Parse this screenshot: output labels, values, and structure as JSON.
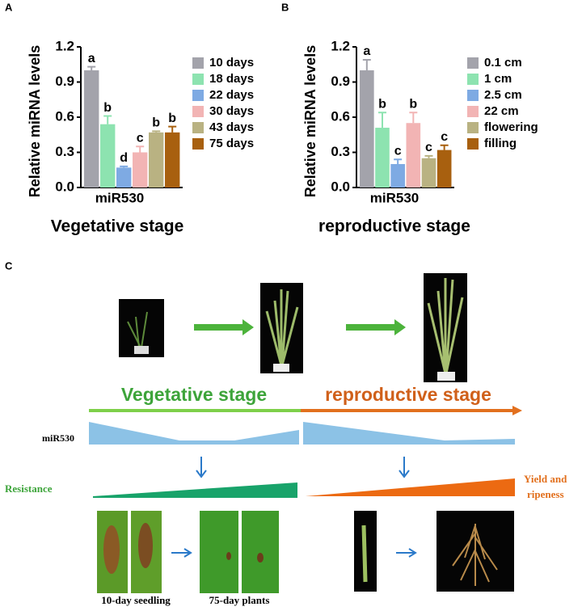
{
  "chart_data": [
    {
      "type": "bar",
      "panel": "A",
      "ylabel": "Relative miRNA levels",
      "xlabel": "miR530",
      "title": "Vegetative stage",
      "categories": [
        "10 days",
        "18 days",
        "22 days",
        "30 days",
        "43 days",
        "75 days"
      ],
      "values": [
        1.0,
        0.54,
        0.17,
        0.3,
        0.47,
        0.47
      ],
      "errors": [
        0.03,
        0.07,
        0.01,
        0.05,
        0.01,
        0.05
      ],
      "annotations": [
        "a",
        "b",
        "d",
        "c",
        "b",
        "b"
      ],
      "colors": [
        "#a3a3ab",
        "#8de3b0",
        "#7eaae3",
        "#f2b4b4",
        "#b9b282",
        "#a8600f"
      ],
      "ylim": [
        0,
        1.2
      ],
      "yticks": [
        {
          "value": 0,
          "label": "0.0"
        },
        0.3,
        0.6,
        0.9,
        1.2
      ]
    },
    {
      "type": "bar",
      "panel": "B",
      "ylabel": "Relative miRNA levels",
      "xlabel": "miR530",
      "title": "reproductive stage",
      "categories": [
        "0.1 cm",
        "1 cm",
        "2.5 cm",
        "22 cm",
        "flowering",
        "filling"
      ],
      "values": [
        1.0,
        0.51,
        0.2,
        0.55,
        0.25,
        0.32
      ],
      "errors": [
        0.09,
        0.13,
        0.04,
        0.09,
        0.02,
        0.04
      ],
      "annotations": [
        "a",
        "b",
        "c",
        "b",
        "c",
        "c"
      ],
      "colors": [
        "#a3a3ab",
        "#8de3b0",
        "#7eaae3",
        "#f2b4b4",
        "#b9b282",
        "#a8600f"
      ],
      "ylim": [
        0,
        1.2
      ],
      "yticks": [
        {
          "value": 0,
          "label": "0.0"
        },
        0.3,
        0.6,
        0.9,
        1.2
      ]
    }
  ],
  "panel_c": {
    "label": "C",
    "stage1": "Vegetative stage",
    "stage2": "reproductive stage",
    "mirna": "miR530",
    "resistance": "Resistance",
    "yield": [
      "Yield and",
      "ripeness"
    ],
    "seedling": "10-day seedling",
    "plants": "75-day plants"
  }
}
